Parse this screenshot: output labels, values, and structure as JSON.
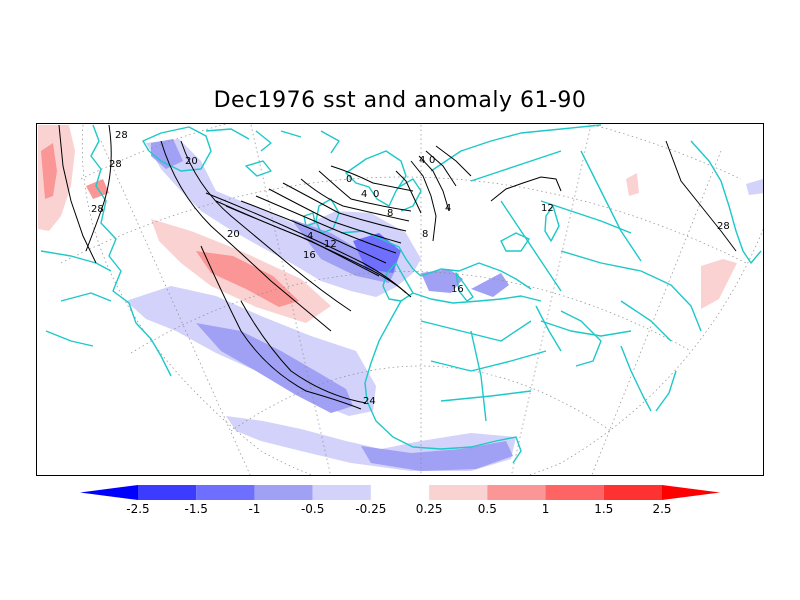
{
  "title": "Dec1976 sst and anomaly 61-90",
  "colors": {
    "land_outline": "#1ec8c8",
    "contour": "#000000",
    "graticule": "#8c8c8c"
  },
  "contour_labels": [
    "28",
    "28",
    "28",
    "20",
    "20",
    "16",
    "16",
    "12",
    "8",
    "4",
    "4",
    "0",
    "0",
    "4",
    "0",
    "4",
    "8",
    "12",
    "24",
    "28"
  ],
  "colorbar": {
    "colors": [
      "#0000ff",
      "#3c3cff",
      "#6e6eff",
      "#a0a0f5",
      "#d2d2fa",
      "#ffffff",
      "#fad2d2",
      "#fa9696",
      "#ff6464",
      "#ff3232",
      "#ff0000"
    ],
    "tick_labels": [
      "-2.5",
      "-1.5",
      "-1",
      "-0.5",
      "-0.25",
      "0.25",
      "0.5",
      "1",
      "1.5",
      "2.5"
    ]
  }
}
